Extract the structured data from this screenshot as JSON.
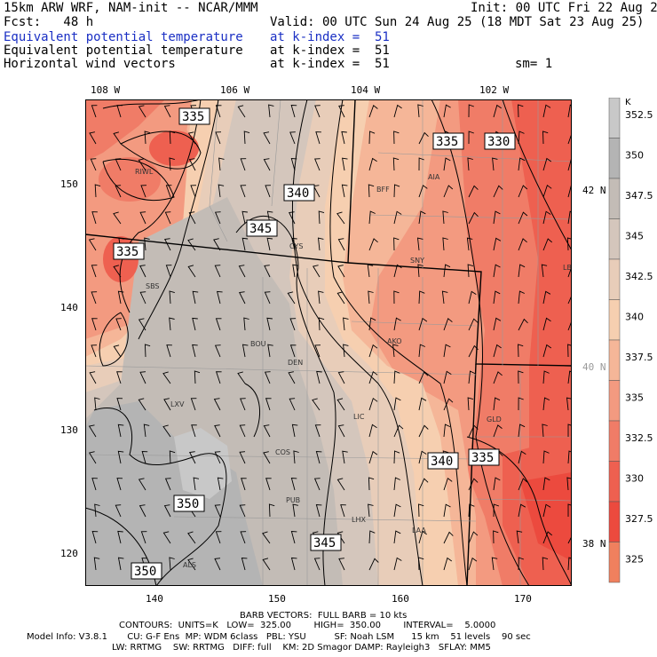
{
  "header": {
    "model": "15km ARW WRF, NAM-init -- NCAR/MMM",
    "init": "Init: 00 UTC Fri 22 Aug 25",
    "fcst": "Fcst:   48 h",
    "valid": "Valid: 00 UTC Sun 24 Aug 25 (18 MDT Sat 23 Aug 25)",
    "fields": [
      {
        "name": "Equivalent potential temperature",
        "level": "at k-index =  51",
        "color": "#1a2fc4"
      },
      {
        "name": "Equivalent potential temperature",
        "level": "at k-index =  51",
        "color": "#000000"
      },
      {
        "name": "Horizontal wind vectors",
        "level": "at k-index =  51",
        "color": "#000000"
      }
    ],
    "smoothing": "sm= 1"
  },
  "axes": {
    "top_longitudes": [
      "108 W",
      "106 W",
      "104 W",
      "102 W"
    ],
    "right_latitudes": [
      "42 N",
      "40 N",
      "38 N"
    ],
    "left_ticks": [
      "150",
      "140",
      "130",
      "120"
    ],
    "bottom_ticks": [
      "140",
      "150",
      "160",
      "170"
    ]
  },
  "colorbar": {
    "unit": "K",
    "labels": [
      "352.5",
      "350",
      "347.5",
      "345",
      "342.5",
      "340",
      "337.5",
      "335",
      "332.5",
      "330",
      "327.5",
      "325"
    ],
    "colors": [
      "#c8c8c8",
      "#b4b4b4",
      "#c3bcb6",
      "#d4c6bc",
      "#e8cdb9",
      "#f6cfb0",
      "#f5b698",
      "#f39a80",
      "#f07c67",
      "#ee6050",
      "#ec4a3e",
      "#f0805e"
    ]
  },
  "contour_labels": [
    "335",
    "335",
    "330",
    "340",
    "345",
    "335",
    "340",
    "335",
    "350",
    "345",
    "350"
  ],
  "stations": [
    "RIWL",
    "BFF",
    "AIA",
    "CYS",
    "SNY",
    "LBF",
    "SBS",
    "BOU",
    "AKO",
    "DEN",
    "LXV",
    "LIC",
    "GLD",
    "COS",
    "PUB",
    "LHX",
    "LAA",
    "ALS"
  ],
  "footer": {
    "barb": "BARB VECTORS:  FULL BARB = 10 kts",
    "contours": "CONTOURS:  UNITS=K   LOW=  325.00        HIGH=  350.00        INTERVAL=    5.0000",
    "model_info_1": "Model Info: V3.8.1       CU: G-F Ens  MP: WDM 6class   PBL: YSU          SF: Noah LSM      15 km    51 levels    90 sec",
    "model_info_2": "LW: RRTMG    SW: RRTMG   DIFF: full    KM: 2D Smagor DAMP: Rayleigh3   SFLAY: MM5"
  }
}
